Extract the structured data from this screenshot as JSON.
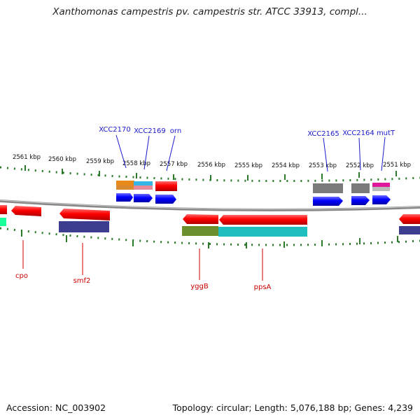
{
  "title": "Xanthomonas campestris pv. campestris str. ATCC 33913, compl...",
  "footer": {
    "accession": "Accession: NC_003902",
    "summary": "Topology: circular; Length: 5,076,188 bp; Genes: 4,239"
  },
  "ticks": [
    "2561 kbp",
    "2560 kbp",
    "2559 kbp",
    "2558 kbp",
    "2557 kbp",
    "2556 kbp",
    "2555 kbp",
    "2554 kbp",
    "2553 kbp",
    "2552 kbp",
    "2551 kbp"
  ],
  "labels_top": [
    "XCC2170",
    "XCC2169",
    "orn",
    "XCC2165",
    "XCC2164",
    "mutT"
  ],
  "labels_bottom": [
    "cpo",
    "smf2",
    "yggB",
    "ppsA"
  ],
  "colors": {
    "forward_cds": "#0000ff",
    "reverse_cds": "#ff0000",
    "top_label": "#1a1acc",
    "bottom_label": "#cc0000",
    "tick": "#2a7a2a",
    "backbone": "#888888"
  }
}
